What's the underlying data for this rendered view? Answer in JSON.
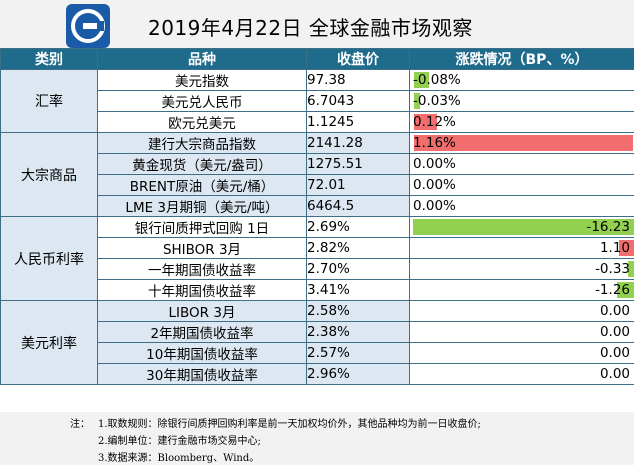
{
  "title": "2019年4月22日 全球金融市场观察",
  "headers": {
    "category": "类别",
    "product": "品种",
    "close": "收盘价",
    "change": "涨跌情况（BP、%）"
  },
  "groups": [
    {
      "label": "汇率",
      "rows": [
        {
          "name": "美元指数",
          "close": "97.38",
          "change": "-0.08%",
          "value": -0.08,
          "unit": "%"
        },
        {
          "name": "美元兑人民币",
          "close": "6.7043",
          "change": "-0.03%",
          "value": -0.03,
          "unit": "%"
        },
        {
          "name": "欧元兑美元",
          "close": "1.1245",
          "change": "0.12%",
          "value": 0.12,
          "unit": "%"
        }
      ]
    },
    {
      "label": "大宗商品",
      "rows": [
        {
          "name": "建行大宗商品指数",
          "close": "2141.28",
          "change": "1.16%",
          "value": 1.16,
          "unit": "%"
        },
        {
          "name": "黄金现货（美元/盎司）",
          "close": "1275.51",
          "change": "0.00%",
          "value": 0,
          "unit": "%"
        },
        {
          "name": "BRENT原油（美元/桶）",
          "close": "72.01",
          "change": "0.00%",
          "value": 0,
          "unit": "%"
        },
        {
          "name": "LME 3月期铜（美元/吨）",
          "close": "6464.5",
          "change": "0.00%",
          "value": 0,
          "unit": "%"
        }
      ]
    },
    {
      "label": "人民币利率",
      "rows": [
        {
          "name": "银行间质押式回购 1日",
          "close": "2.69%",
          "change": "-16.23",
          "value": -16.23,
          "unit": "BP"
        },
        {
          "name": "SHIBOR 3月",
          "close": "2.82%",
          "change": "1.10",
          "value": 1.1,
          "unit": "BP"
        },
        {
          "name": "一年期国债收益率",
          "close": "2.70%",
          "change": "-0.33",
          "value": -0.33,
          "unit": "BP"
        },
        {
          "name": "十年期国债收益率",
          "close": "3.41%",
          "change": "-1.26",
          "value": -1.26,
          "unit": "BP"
        }
      ]
    },
    {
      "label": "美元利率",
      "rows": [
        {
          "name": "LIBOR 3月",
          "close": "2.58%",
          "change": "0.00",
          "value": 0,
          "unit": "BP"
        },
        {
          "name": "2年期国债收益率",
          "close": "2.38%",
          "change": "0.00",
          "value": 0,
          "unit": "BP"
        },
        {
          "name": "10年期国债收益率",
          "close": "2.57%",
          "change": "0.00",
          "value": 0,
          "unit": "BP"
        },
        {
          "name": "30年期国债收益率",
          "close": "2.96%",
          "change": "0.00",
          "value": 0,
          "unit": "BP"
        }
      ]
    }
  ],
  "notes": {
    "label": "注：",
    "lines": [
      "1.取数规则：除银行间质押回购利率是前一天加权均价外，其他品种均为前一日收盘价;",
      "2.编制单位：建行金融市场交易中心;",
      "3.数据来源：Bloomberg、Wind。"
    ]
  },
  "colors": {
    "header_bg": "#1f6b8c",
    "category_bg": "#dce7f1",
    "positive_bar": "#f26d6d",
    "negative_bar": "#92d050",
    "logo": "#1a5ba8"
  }
}
